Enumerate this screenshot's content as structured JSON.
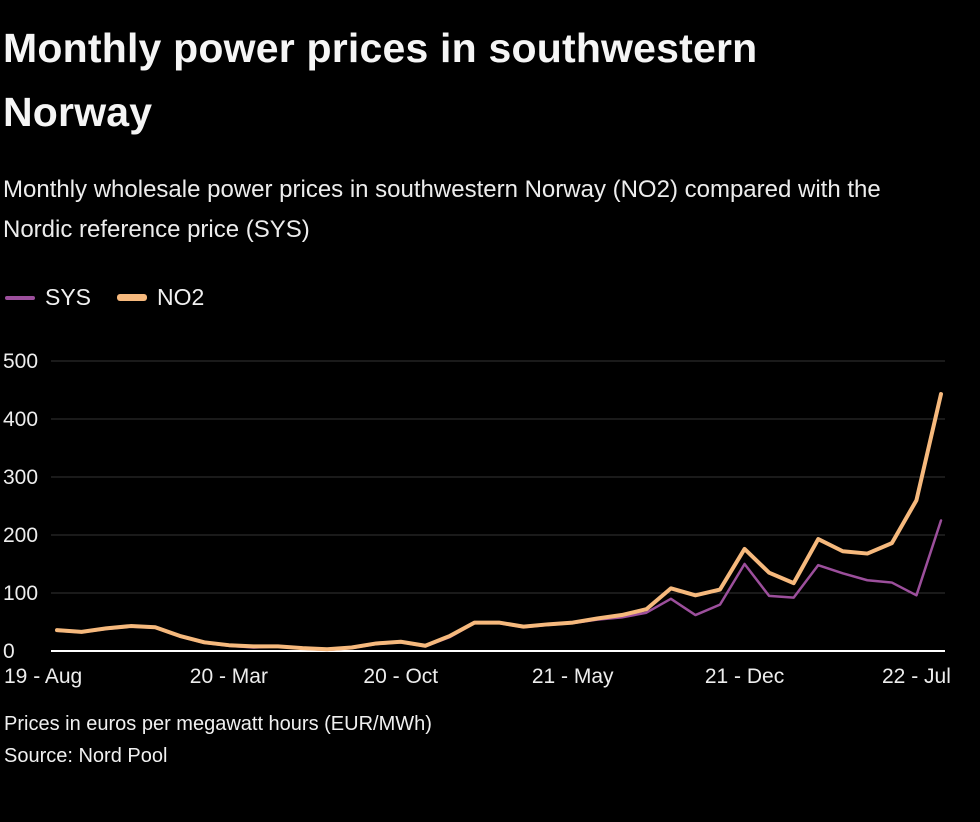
{
  "header": {
    "title": "Monthly power prices in southwestern Norway",
    "subtitle": "Monthly wholesale power prices in southwestern Norway (NO2) compared with the Nordic reference price (SYS)"
  },
  "legend": [
    {
      "label": "SYS",
      "color": "#9c4f9c"
    },
    {
      "label": "NO2",
      "color": "#f6b97d"
    }
  ],
  "footer": {
    "note": "Prices in euros per megawatt hours (EUR/MWh)",
    "source": "Source: Nord Pool"
  },
  "chart_data": {
    "type": "line",
    "title": "Monthly power prices in southwestern Norway",
    "xlabel": "",
    "ylabel": "Prices in euros per megawatt hours (EUR/MWh)",
    "ylim": [
      0,
      500
    ],
    "yticks": [
      0,
      100,
      200,
      300,
      400,
      500
    ],
    "grid": true,
    "legend_position": "top-left",
    "x": [
      "19-Aug",
      "19-Sep",
      "19-Oct",
      "19-Nov",
      "19-Dec",
      "20-Jan",
      "20-Feb",
      "20-Mar",
      "20-Apr",
      "20-May",
      "20-Jun",
      "20-Jul",
      "20-Aug",
      "20-Sep",
      "20-Oct",
      "20-Nov",
      "20-Dec",
      "21-Jan",
      "21-Feb",
      "21-Mar",
      "21-Apr",
      "21-May",
      "21-Jun",
      "21-Jul",
      "21-Aug",
      "21-Sep",
      "21-Oct",
      "21-Nov",
      "21-Dec",
      "22-Jan",
      "22-Feb",
      "22-Mar",
      "22-Apr",
      "22-May",
      "22-Jun",
      "22-Jul",
      "22-Aug"
    ],
    "xticks": [
      {
        "index": 0,
        "label": "19 - Aug"
      },
      {
        "index": 7,
        "label": "20 - Mar"
      },
      {
        "index": 14,
        "label": "20 - Oct"
      },
      {
        "index": 21,
        "label": "21 - May"
      },
      {
        "index": 28,
        "label": "21 - Dec"
      },
      {
        "index": 35,
        "label": "22 - Jul"
      }
    ],
    "series": [
      {
        "name": "SYS",
        "color": "#9c4f9c",
        "width": 2.5,
        "values": [
          35,
          32,
          38,
          42,
          40,
          25,
          14,
          9,
          6,
          8,
          4,
          2,
          5,
          12,
          15,
          8,
          24,
          48,
          48,
          41,
          45,
          48,
          54,
          58,
          66,
          90,
          62,
          80,
          150,
          95,
          92,
          148,
          134,
          122,
          118,
          96,
          225
        ]
      },
      {
        "name": "NO2",
        "color": "#f6b97d",
        "width": 4,
        "values": [
          36,
          33,
          39,
          43,
          41,
          26,
          15,
          10,
          8,
          8,
          5,
          3,
          6,
          13,
          16,
          9,
          26,
          49,
          49,
          42,
          46,
          49,
          56,
          62,
          72,
          108,
          96,
          106,
          176,
          135,
          117,
          193,
          172,
          168,
          186,
          260,
          443
        ]
      }
    ]
  }
}
